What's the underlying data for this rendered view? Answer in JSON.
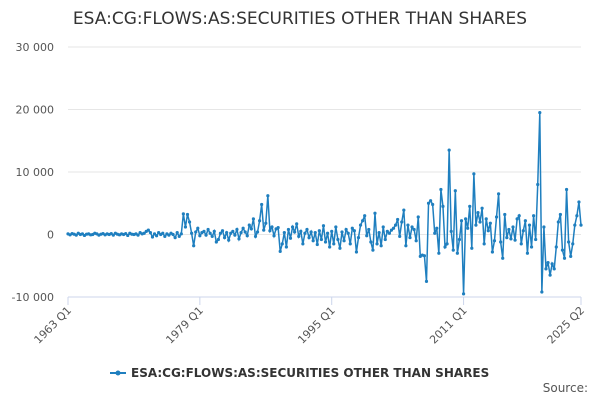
{
  "chart_data": {
    "type": "line",
    "title": "ESA:CG:FLOWS:AS:SECURITIES OTHER THAN SHARES",
    "source": "Source:",
    "legend": "bottom",
    "grid": true,
    "ylim": [
      -10000,
      30000
    ],
    "yticks": [
      {
        "value": -10000,
        "label": "-10 000"
      },
      0,
      {
        "value": 10000,
        "label": "10 000"
      },
      {
        "value": 20000,
        "label": "20 000"
      },
      {
        "value": 30000,
        "label": "30 000"
      }
    ],
    "categories": [
      "1963 Q1",
      null,
      null,
      null,
      null,
      null,
      null,
      null,
      null,
      null,
      null,
      null,
      null,
      null,
      null,
      null,
      null,
      null,
      null,
      null,
      null,
      null,
      null,
      null,
      null,
      null,
      null,
      null,
      null,
      null,
      null,
      null,
      null,
      null,
      null,
      null,
      null,
      null,
      null,
      null,
      null,
      null,
      null,
      null,
      null,
      null,
      null,
      null,
      null,
      null,
      null,
      null,
      null,
      null,
      null,
      null,
      null,
      null,
      null,
      null,
      null,
      null,
      null,
      null,
      "1979 Q1",
      null,
      null,
      null,
      null,
      null,
      null,
      null,
      null,
      null,
      null,
      null,
      null,
      null,
      null,
      null,
      null,
      null,
      null,
      null,
      null,
      null,
      null,
      null,
      null,
      null,
      null,
      null,
      null,
      null,
      null,
      null,
      null,
      null,
      null,
      null,
      null,
      null,
      null,
      null,
      null,
      null,
      null,
      null,
      null,
      null,
      null,
      null,
      null,
      null,
      null,
      null,
      null,
      null,
      null,
      null,
      null,
      null,
      null,
      null,
      null,
      null,
      null,
      null,
      "1995 Q1",
      null,
      null,
      null,
      null,
      null,
      null,
      null,
      null,
      null,
      null,
      null,
      null,
      null,
      null,
      null,
      null,
      null,
      null,
      null,
      null,
      null,
      null,
      null,
      null,
      null,
      null,
      null,
      null,
      null,
      null,
      null,
      null,
      null,
      null,
      null,
      null,
      null,
      null,
      null,
      null,
      null,
      null,
      null,
      null,
      null,
      null,
      null,
      null,
      null,
      null,
      null,
      null,
      null,
      null,
      null,
      null,
      null,
      null,
      null,
      null,
      null,
      null,
      null,
      "2011 Q1",
      null,
      null,
      null,
      null,
      null,
      null,
      null,
      null,
      null,
      null,
      null,
      null,
      null,
      null,
      null,
      null,
      null,
      null,
      null,
      null,
      null,
      null,
      null,
      null,
      null,
      null,
      null,
      null,
      null,
      null,
      null,
      null,
      null,
      null,
      null,
      null,
      null,
      null,
      null,
      null,
      null,
      null,
      null,
      null,
      null,
      null,
      null,
      null,
      null,
      null,
      null,
      null,
      null,
      null,
      null,
      null,
      "2025 Q2"
    ],
    "series": [
      {
        "name": "ESA:CG:FLOWS:AS:SECURITIES OTHER THAN SHARES",
        "color": "#1f7fbf",
        "values": [
          100,
          -50,
          150,
          50,
          -100,
          200,
          0,
          100,
          -150,
          50,
          100,
          -50,
          0,
          200,
          100,
          -100,
          50,
          150,
          -50,
          100,
          0,
          150,
          -100,
          200,
          50,
          -50,
          100,
          0,
          150,
          -150,
          200,
          50,
          0,
          100,
          -100,
          300,
          100,
          200,
          500,
          700,
          300,
          -400,
          100,
          -200,
          300,
          0,
          200,
          -300,
          100,
          -100,
          200,
          0,
          -500,
          300,
          -300,
          100,
          3300,
          1200,
          3200,
          2000,
          200,
          -1800,
          400,
          1000,
          -200,
          300,
          500,
          -100,
          800,
          200,
          -300,
          500,
          -1200,
          -800,
          200,
          600,
          -500,
          300,
          -900,
          200,
          500,
          -100,
          800,
          -700,
          300,
          1000,
          400,
          -200,
          1500,
          900,
          2500,
          -300,
          400,
          2200,
          4800,
          700,
          1800,
          6200,
          600,
          1200,
          -200,
          900,
          1100,
          -2700,
          -1500,
          300,
          -2000,
          800,
          -600,
          1200,
          400,
          1700,
          -300,
          500,
          -1500,
          200,
          800,
          -500,
          400,
          -1000,
          300,
          -1600,
          600,
          -800,
          1400,
          -1200,
          200,
          -2000,
          500,
          -1500,
          1200,
          -800,
          -2200,
          400,
          -1000,
          800,
          200,
          -1500,
          1000,
          600,
          -2800,
          -500,
          1500,
          2200,
          3000,
          -200,
          800,
          -1200,
          -2500,
          3400,
          -1500,
          300,
          -1800,
          1200,
          -800,
          500,
          200,
          700,
          1000,
          1500,
          2400,
          -300,
          2000,
          3900,
          -1800,
          1500,
          -500,
          1200,
          800,
          -1000,
          2800,
          -3500,
          -3300,
          -3400,
          -7500,
          5000,
          5400,
          4800,
          200,
          1000,
          -3000,
          7200,
          4500,
          -2000,
          -1500,
          13500,
          500,
          -2500,
          7000,
          -3000,
          -800,
          2200,
          -9500,
          2500,
          1000,
          4500,
          -2200,
          9700,
          1500,
          3500,
          2000,
          4200,
          -1500,
          2500,
          600,
          1800,
          -2800,
          -1000,
          2800,
          6500,
          -1200,
          -3800,
          3200,
          -500,
          800,
          -700,
          1200,
          -900,
          2500,
          3000,
          -1500,
          600,
          2200,
          -3000,
          1500,
          -2000,
          3000,
          -800,
          8000,
          19500,
          -9200,
          1200,
          -5500,
          -4500,
          -6500,
          -4700,
          -5500,
          -2000,
          2000,
          3200,
          -2500,
          -3800,
          7200,
          -1200,
          -3500,
          -1500,
          1500,
          3000,
          5200,
          1500
        ]
      }
    ]
  }
}
